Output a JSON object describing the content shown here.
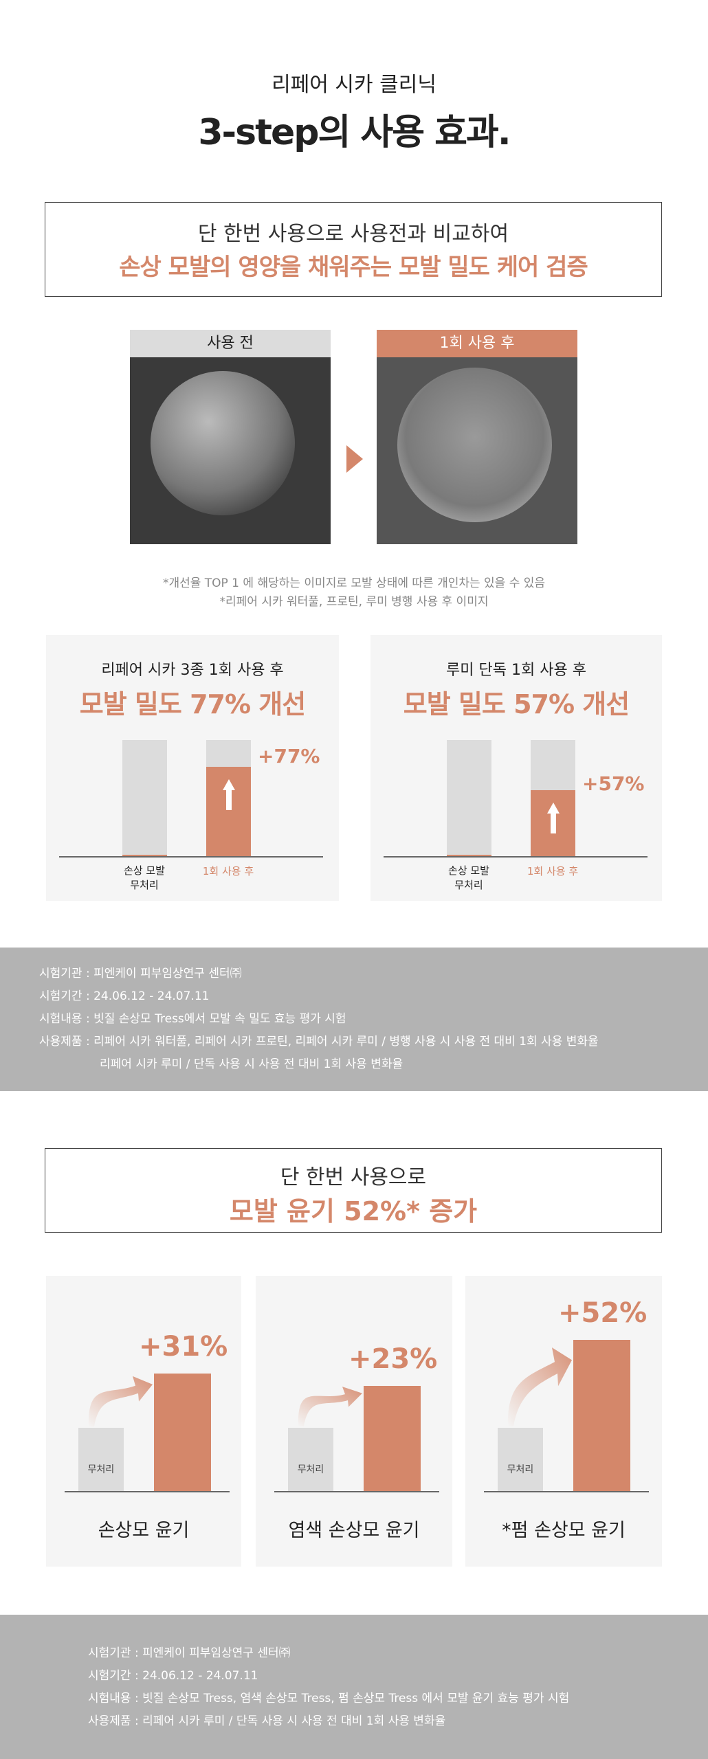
{
  "header": {
    "subtitle": "리페어 시카 클리닉",
    "title": "3-step의 사용 효과."
  },
  "section1": {
    "box_line1": "단 한번 사용으로 사용전과 비교하여",
    "box_line2": "손상 모발의 영양을 채워주는 모발 밀도 케어 검증",
    "before_label": "사용 전",
    "after_label": "1회 사용 후",
    "notes": [
      "*개선율 TOP 1 에 해당하는 이미지로 모발 상태에 따른 개인차는 있을 수 있음",
      "*리페어 시카 워터풀, 프로틴, 루미 병행 사용 후 이미지"
    ],
    "cards": [
      {
        "caption": "리페어 시카 3종 1회 사용 후",
        "headline": "모발 밀도 77% 개선",
        "value_label": "+77%",
        "fill_percent": 77,
        "x_labels": [
          "손상 모발\n무처리",
          "1회 사용 후"
        ]
      },
      {
        "caption": "루미 단독 1회 사용 후",
        "headline": "모발 밀도 57% 개선",
        "value_label": "+57%",
        "fill_percent": 57,
        "x_labels": [
          "손상 모발\n무처리",
          "1회 사용 후"
        ]
      }
    ]
  },
  "info1": [
    {
      "label": "시험기관 : ",
      "text": "피엔케이 피부임상연구 센터㈜"
    },
    {
      "label": "시험기간 : ",
      "text": "24.06.12 - 24.07.11"
    },
    {
      "label": "시험내용 : ",
      "text": "빗질 손상모 Tress에서 모발 속 밀도 효능 평가 시험"
    },
    {
      "label": "사용제품 : ",
      "text": "리페어 시카 워터풀, 리페어 시카 프로틴, 리페어 시카 루미 / 병행 사용 시 사용 전 대비 1회 사용 변화율"
    },
    {
      "label": "",
      "text": "리페어 시카 루미 / 단독 사용 시 사용 전 대비 1회 사용 변화율"
    }
  ],
  "section2": {
    "box_line1": "단 한번 사용으로",
    "box_line2": "모발 윤기 52%* 증가",
    "cards": [
      {
        "value": 31,
        "value_label": "+31%",
        "base_label": "무처리",
        "caption": "손상모 윤기"
      },
      {
        "value": 23,
        "value_label": "+23%",
        "base_label": "무처리",
        "caption": "염색 손상모 윤기"
      },
      {
        "value": 52,
        "value_label": "+52%",
        "base_label": "무처리",
        "caption": "*펌 손상모 윤기"
      }
    ]
  },
  "info2": [
    {
      "label": "시험기관 : ",
      "text": "피엔케이 피부임상연구 센터㈜"
    },
    {
      "label": "시험기간 : ",
      "text": "24.06.12 - 24.07.11"
    },
    {
      "label": "시험내용 : ",
      "text": "빗질 손상모 Tress, 염색 손상모 Tress, 펌 손상모 Tress 에서 모발 윤기 효능 평가 시험"
    },
    {
      "label": "사용제품 : ",
      "text": "리페어 시카 루미 / 단독 사용 시 사용 전 대비 1회 사용 변화율"
    }
  ],
  "colors": {
    "accent": "#d4876a",
    "bar_gray": "#dcdcdc",
    "info_band": "#b3b3b3",
    "card_bg": "#f5f5f5"
  }
}
